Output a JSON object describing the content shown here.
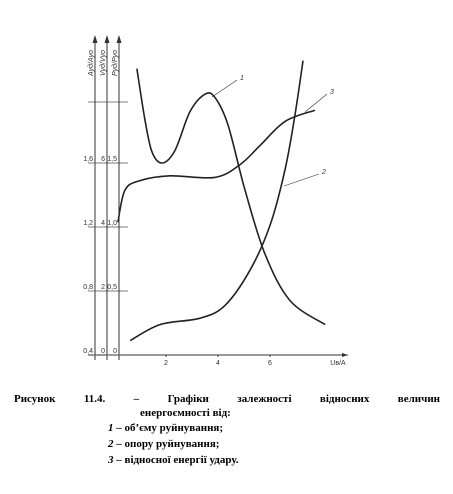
{
  "chart_data": {
    "type": "line",
    "x_label": "Uв/A",
    "xlim": [
      -1,
      9
    ],
    "xticks": [
      2,
      4,
      6
    ],
    "y_axes": [
      {
        "label": "Aуд/Aуо",
        "ylim": [
          0.4,
          2.4
        ],
        "yticks": [
          {
            "value": 0.4,
            "label": "0,4"
          },
          {
            "value": 0.8,
            "label": "0,8"
          },
          {
            "value": 1.2,
            "label": "1,2"
          },
          {
            "value": 1.6,
            "label": "1,6"
          }
        ]
      },
      {
        "label": "Vуд/Vуо",
        "ylim": [
          0,
          10
        ],
        "yticks": [
          0,
          2,
          4,
          6
        ]
      },
      {
        "label": "Pуд/Pуо",
        "ylim": [
          0,
          2.5
        ],
        "yticks": [
          0,
          {
            "value": 0.5,
            "label": "0,5"
          },
          {
            "value": 1.0,
            "label": "1,0"
          },
          {
            "value": 1.5,
            "label": "1,5"
          }
        ]
      }
    ],
    "series": [
      {
        "name": "1",
        "color": "#222",
        "x": [
          0.88,
          1.19,
          1.46,
          1.85,
          2.35,
          2.92,
          3.5,
          3.88,
          4.38,
          5.04,
          5.81,
          6.77,
          8.12
        ],
        "values": [
          2.19,
          1.87,
          1.67,
          1.6,
          1.68,
          1.92,
          2.03,
          2.01,
          1.84,
          1.43,
          1.03,
          0.74,
          0.59
        ]
      },
      {
        "name": "2",
        "color": "#222",
        "x": [
          0.62,
          1.77,
          3.31,
          4.27,
          5.23,
          6.0,
          6.58,
          6.96,
          7.27
        ],
        "values": [
          0.49,
          0.59,
          0.63,
          0.71,
          0.93,
          1.21,
          1.56,
          1.9,
          2.24
        ]
      },
      {
        "name": "3",
        "color": "#222",
        "x": [
          0.15,
          0.42,
          1.0,
          2.15,
          3.88,
          4.85,
          5.62,
          6.58,
          7.73
        ],
        "values": [
          1.23,
          1.43,
          1.49,
          1.52,
          1.51,
          1.59,
          1.71,
          1.86,
          1.93
        ]
      }
    ]
  },
  "caption": {
    "title": "Рисунок 11.4. – Графіки залежності відносних величин",
    "title_end": "енергоємності від:",
    "items": [
      {
        "num": "1",
        "text": "– об’єму руйнування;"
      },
      {
        "num": "2",
        "text": "– опору руйнування;"
      },
      {
        "num": "3",
        "text": "– відносної енергії удару."
      }
    ]
  }
}
